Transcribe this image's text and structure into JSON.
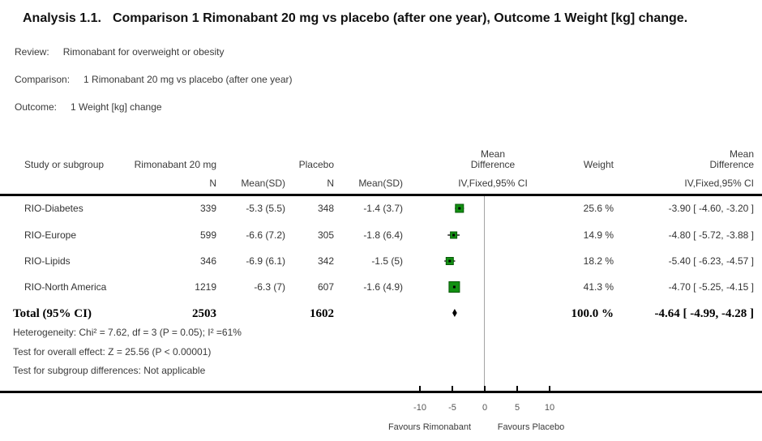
{
  "title": {
    "analysis": "Analysis 1.1.",
    "description": "Comparison 1 Rimonabant 20 mg vs placebo (after one year), Outcome 1 Weight [kg] change."
  },
  "meta": {
    "review_label": "Review:",
    "review_value": "Rimonabant for overweight or obesity",
    "comparison_label": "Comparison:",
    "comparison_value": "1 Rimonabant 20 mg vs placebo (after one year)",
    "outcome_label": "Outcome:",
    "outcome_value": "1 Weight [kg] change"
  },
  "table_headers": {
    "study": "Study or subgroup",
    "group1": "Rimonabant 20 mg",
    "group2": "Placebo",
    "n": "N",
    "mean_sd": "Mean(SD)",
    "effect_line1": "Mean",
    "effect_line2": "Difference",
    "effect_method": "IV,Fixed,95% CI",
    "weight": "Weight"
  },
  "chart_data": {
    "type": "forest",
    "effect_label": "Mean Difference",
    "model": "IV,Fixed,95% CI",
    "studies": [
      {
        "study": "RIO-Diabetes",
        "n_treat": "339",
        "mean_sd_treat": "-5.3 (5.5)",
        "n_placebo": "348",
        "mean_sd_placebo": "-1.4 (3.7)",
        "weight": "25.6 %",
        "ci_text": "-3.90 [ -4.60, -3.20 ]",
        "estimate": -3.9,
        "ci_low": -4.6,
        "ci_high": -3.2,
        "weight_pct": 25.6
      },
      {
        "study": "RIO-Europe",
        "n_treat": "599",
        "mean_sd_treat": "-6.6 (7.2)",
        "n_placebo": "305",
        "mean_sd_placebo": "-1.8 (6.4)",
        "weight": "14.9 %",
        "ci_text": "-4.80 [ -5.72, -3.88 ]",
        "estimate": -4.8,
        "ci_low": -5.72,
        "ci_high": -3.88,
        "weight_pct": 14.9
      },
      {
        "study": "RIO-Lipids",
        "n_treat": "346",
        "mean_sd_treat": "-6.9 (6.1)",
        "n_placebo": "342",
        "mean_sd_placebo": "-1.5 (5)",
        "weight": "18.2 %",
        "ci_text": "-5.40 [ -6.23, -4.57 ]",
        "estimate": -5.4,
        "ci_low": -6.23,
        "ci_high": -4.57,
        "weight_pct": 18.2
      },
      {
        "study": "RIO-North America",
        "n_treat": "1219",
        "mean_sd_treat": "-6.3 (7)",
        "n_placebo": "607",
        "mean_sd_placebo": "-1.6 (4.9)",
        "weight": "41.3 %",
        "ci_text": "-4.70 [ -5.25, -4.15 ]",
        "estimate": -4.7,
        "ci_low": -5.25,
        "ci_high": -4.15,
        "weight_pct": 41.3
      }
    ],
    "total": {
      "label": "Total (95% CI)",
      "n_treat": "2503",
      "n_placebo": "1602",
      "weight": "100.0 %",
      "ci_text": "-4.64 [ -4.99, -4.28 ]",
      "estimate": -4.64,
      "ci_low": -4.99,
      "ci_high": -4.28
    },
    "x_ticks": [
      -10,
      -5,
      0,
      5,
      10
    ],
    "x_range": [
      -12.5,
      12.5
    ],
    "favours_left": "Favours Rimonabant",
    "favours_right": "Favours Placebo",
    "marker_fill": "#129012",
    "marker_stroke": "#075707",
    "line_color": "#000000",
    "zero_line_color": "#a3a3a3"
  },
  "footnotes": {
    "heterogeneity": "Heterogeneity: Chi² = 7.62, df = 3 (P = 0.05); I² =61%",
    "overall_effect": "Test for overall effect: Z = 25.56 (P < 0.00001)",
    "subgroup": "Test for subgroup differences: Not applicable"
  }
}
